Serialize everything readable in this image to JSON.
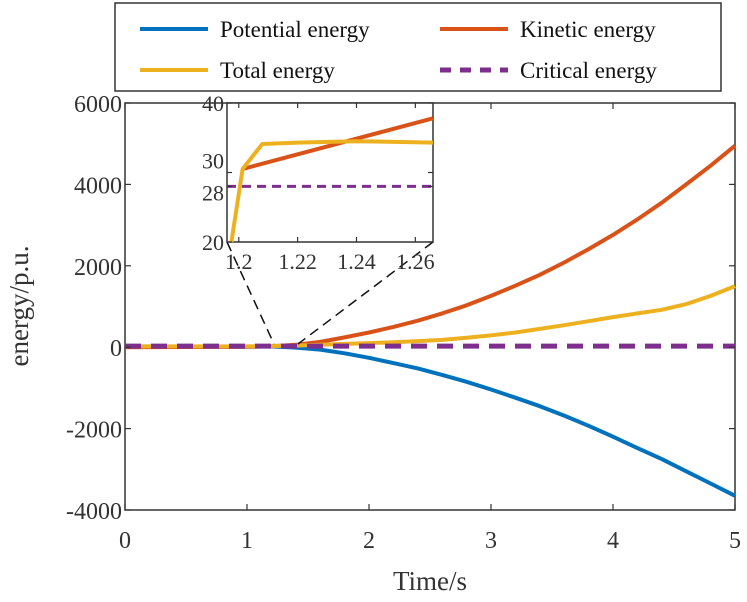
{
  "chart_data": {
    "type": "line",
    "xlabel": "Time/s",
    "ylabel": "energy/p.u.",
    "xlim": [
      0,
      5
    ],
    "ylim": [
      -4000,
      6000
    ],
    "xticks": [
      "0",
      "1",
      "2",
      "3",
      "4",
      "5"
    ],
    "yticks": [
      "-4000",
      "-2000",
      "0",
      "2000",
      "4000",
      "6000"
    ],
    "grid": false,
    "legend_position": "top",
    "series": [
      {
        "name": "Potential energy",
        "color": "#0072BD",
        "style": "solid",
        "x": [
          0,
          1.0,
          1.2,
          1.4,
          1.6,
          1.8,
          2.0,
          2.2,
          2.4,
          2.6,
          2.8,
          3.0,
          3.2,
          3.4,
          3.6,
          3.8,
          4.0,
          4.2,
          4.4,
          4.6,
          4.8,
          5.0
        ],
        "y": [
          20,
          10,
          20,
          -10,
          -60,
          -150,
          -260,
          -390,
          -520,
          -680,
          -850,
          -1040,
          -1240,
          -1450,
          -1680,
          -1930,
          -2200,
          -2480,
          -2750,
          -3050,
          -3350,
          -3650
        ]
      },
      {
        "name": "Kinetic energy",
        "color": "#D95319",
        "style": "solid",
        "x": [
          0,
          1.0,
          1.2,
          1.4,
          1.6,
          1.8,
          2.0,
          2.2,
          2.4,
          2.6,
          2.8,
          3.0,
          3.2,
          3.4,
          3.6,
          3.8,
          4.0,
          4.2,
          4.4,
          4.6,
          4.8,
          5.0
        ],
        "y": [
          0,
          10,
          25,
          60,
          130,
          240,
          360,
          500,
          650,
          830,
          1030,
          1260,
          1510,
          1780,
          2080,
          2410,
          2760,
          3140,
          3550,
          4000,
          4460,
          4950
        ]
      },
      {
        "name": "Total energy",
        "color": "#EDB120",
        "style": "solid",
        "x": [
          0,
          1.0,
          1.2,
          1.4,
          1.6,
          1.8,
          2.0,
          2.2,
          2.4,
          2.6,
          2.8,
          3.0,
          3.2,
          3.4,
          3.6,
          3.8,
          4.0,
          4.2,
          4.4,
          4.6,
          4.8,
          5.0
        ],
        "y": [
          20,
          20,
          30,
          40,
          60,
          80,
          100,
          120,
          150,
          180,
          230,
          290,
          360,
          450,
          540,
          640,
          740,
          830,
          920,
          1060,
          1260,
          1500
        ]
      },
      {
        "name": "Critical energy",
        "color": "#7E2F8E",
        "style": "dashed",
        "x": [
          0,
          5
        ],
        "y": [
          28,
          28
        ]
      }
    ],
    "inset": {
      "xlim": [
        1.196,
        1.266
      ],
      "ylim": [
        20,
        40
      ],
      "xticks": [
        "1.2",
        "1.22",
        "1.24",
        "1.26"
      ],
      "yticks": [
        "20",
        "28",
        "30",
        "40"
      ],
      "series": [
        {
          "name": "Kinetic energy",
          "x": [
            1.2013,
            1.266
          ],
          "y": [
            30.5,
            37.8
          ]
        },
        {
          "name": "Total energy",
          "x": [
            1.1975,
            1.2013,
            1.208,
            1.22,
            1.24,
            1.266
          ],
          "y": [
            20.0,
            30.5,
            34.1,
            34.3,
            34.5,
            34.3
          ]
        },
        {
          "name": "Critical energy",
          "x": [
            1.196,
            1.266
          ],
          "y": [
            28,
            28
          ]
        }
      ]
    }
  }
}
